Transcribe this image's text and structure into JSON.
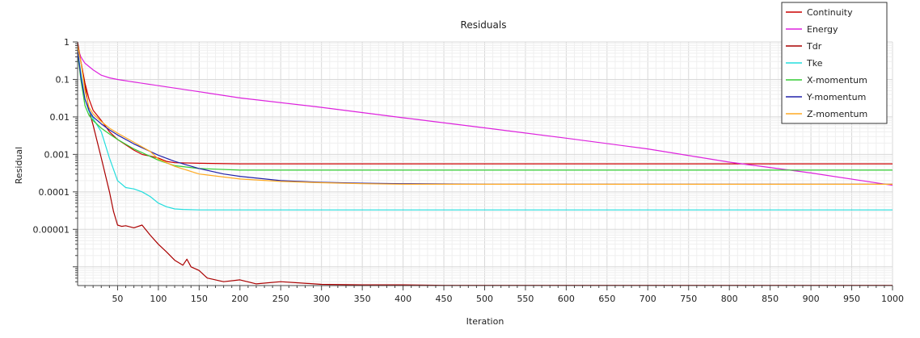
{
  "chart_data": {
    "type": "line",
    "title": "Residuals",
    "xlabel": "Iteration",
    "ylabel": "Residual",
    "xlim": [
      1,
      1000
    ],
    "ylim": [
      3.16e-07,
      1
    ],
    "yscale": "log",
    "grid": true,
    "legend_placement": "top-right",
    "x_ticks": [
      50,
      100,
      150,
      200,
      250,
      300,
      350,
      400,
      450,
      500,
      550,
      600,
      650,
      700,
      750,
      800,
      850,
      900,
      950,
      1000
    ],
    "x_tick_labels": [
      "50",
      "100",
      "150",
      "200",
      "250",
      "300",
      "350",
      "400",
      "450",
      "500",
      "550",
      "600",
      "650",
      "700",
      "750",
      "800",
      "850",
      "900",
      "950",
      "1000"
    ],
    "y_ticks": [
      1,
      0.1,
      0.01,
      0.001,
      0.0001,
      1e-05
    ],
    "y_tick_labels": [
      "1",
      "0.1",
      "0.01",
      "0.001",
      "0.0001",
      "0.00001"
    ],
    "series": [
      {
        "name": "Continuity",
        "color": "#cc0000",
        "x": [
          1,
          5,
          10,
          15,
          20,
          30,
          40,
          50,
          60,
          70,
          80,
          90,
          100,
          110,
          120,
          150,
          200,
          250,
          300,
          400,
          500,
          600,
          700,
          800,
          900,
          1000
        ],
        "y": [
          0.8,
          0.3,
          0.08,
          0.03,
          0.015,
          0.008,
          0.004,
          0.0025,
          0.0018,
          0.0013,
          0.001,
          0.0009,
          0.0008,
          0.00065,
          0.0006,
          0.00058,
          0.00056,
          0.00056,
          0.00056,
          0.00056,
          0.00056,
          0.00056,
          0.00056,
          0.00056,
          0.00056,
          0.00056
        ]
      },
      {
        "name": "Energy",
        "color": "#dd22dd",
        "x": [
          1,
          5,
          10,
          20,
          30,
          40,
          50,
          70,
          100,
          150,
          200,
          300,
          400,
          500,
          600,
          700,
          800,
          900,
          1000
        ],
        "y": [
          0.7,
          0.4,
          0.27,
          0.18,
          0.13,
          0.11,
          0.1,
          0.085,
          0.068,
          0.047,
          0.032,
          0.018,
          0.0095,
          0.0051,
          0.0027,
          0.0014,
          0.00062,
          0.00032,
          0.00015
        ]
      },
      {
        "name": "Tdr",
        "color": "#aa0000",
        "x": [
          1,
          5,
          10,
          15,
          20,
          30,
          40,
          45,
          50,
          55,
          60,
          70,
          80,
          90,
          100,
          110,
          120,
          130,
          135,
          140,
          150,
          160,
          180,
          200,
          220,
          250,
          300,
          350,
          400,
          450,
          500,
          600,
          700,
          800,
          900,
          1000
        ],
        "y": [
          1,
          0.3,
          0.07,
          0.015,
          0.006,
          0.0008,
          0.0001,
          3e-05,
          1.3e-05,
          1.2e-05,
          1.25e-05,
          1.1e-05,
          1.3e-05,
          7e-06,
          4e-06,
          2.5e-06,
          1.5e-06,
          1.1e-06,
          1.6e-06,
          1e-06,
          8e-07,
          5e-07,
          4e-07,
          4.5e-07,
          3.5e-07,
          4e-07,
          3.4e-07,
          3.3e-07,
          3.3e-07,
          3.2e-07,
          3.2e-07,
          3.2e-07,
          3.2e-07,
          3.2e-07,
          3.2e-07,
          3.2e-07
        ]
      },
      {
        "name": "Tke",
        "color": "#22dddd",
        "x": [
          1,
          5,
          10,
          15,
          20,
          30,
          40,
          50,
          60,
          70,
          80,
          90,
          100,
          110,
          120,
          130,
          150,
          200,
          300,
          400,
          500,
          600,
          700,
          800,
          900,
          1000
        ],
        "y": [
          0.6,
          0.15,
          0.03,
          0.014,
          0.009,
          0.004,
          0.0008,
          0.0002,
          0.00013,
          0.00012,
          0.0001,
          7.5e-05,
          5e-05,
          4e-05,
          3.5e-05,
          3.4e-05,
          3.3e-05,
          3.3e-05,
          3.3e-05,
          3.3e-05,
          3.3e-05,
          3.3e-05,
          3.3e-05,
          3.3e-05,
          3.3e-05,
          3.3e-05
        ]
      },
      {
        "name": "X-momentum",
        "color": "#33cc33",
        "x": [
          1,
          5,
          10,
          15,
          20,
          30,
          40,
          50,
          70,
          100,
          120,
          150,
          200,
          250,
          300,
          400,
          500,
          600,
          700,
          800,
          900,
          1000
        ],
        "y": [
          0.5,
          0.1,
          0.02,
          0.011,
          0.008,
          0.005,
          0.0035,
          0.0025,
          0.0014,
          0.0007,
          0.0005,
          0.00042,
          0.00038,
          0.00038,
          0.00038,
          0.00038,
          0.00038,
          0.00038,
          0.00038,
          0.00038,
          0.00038,
          0.00038
        ]
      },
      {
        "name": "Y-momentum",
        "color": "#2222aa",
        "x": [
          1,
          5,
          10,
          15,
          20,
          30,
          40,
          50,
          70,
          100,
          120,
          150,
          180,
          200,
          250,
          300,
          350,
          400,
          500,
          600,
          700,
          800,
          900,
          1000
        ],
        "y": [
          0.6,
          0.12,
          0.03,
          0.015,
          0.01,
          0.0065,
          0.0045,
          0.0033,
          0.0019,
          0.00095,
          0.00065,
          0.00042,
          0.0003,
          0.00026,
          0.0002,
          0.00018,
          0.00017,
          0.000165,
          0.00016,
          0.00016,
          0.00016,
          0.00016,
          0.00016,
          0.00016
        ]
      },
      {
        "name": "Z-momentum",
        "color": "#ffaa22",
        "x": [
          1,
          5,
          10,
          15,
          20,
          30,
          40,
          50,
          70,
          90,
          100,
          110,
          120,
          150,
          200,
          250,
          300,
          350,
          400,
          500,
          600,
          700,
          800,
          900,
          1000
        ],
        "y": [
          0.8,
          0.3,
          0.05,
          0.018,
          0.012,
          0.0075,
          0.005,
          0.0037,
          0.0021,
          0.0012,
          0.00075,
          0.0006,
          0.00048,
          0.0003,
          0.00022,
          0.00019,
          0.000175,
          0.000165,
          0.00016,
          0.00016,
          0.00016,
          0.00016,
          0.00016,
          0.00016,
          0.00016
        ]
      }
    ]
  }
}
